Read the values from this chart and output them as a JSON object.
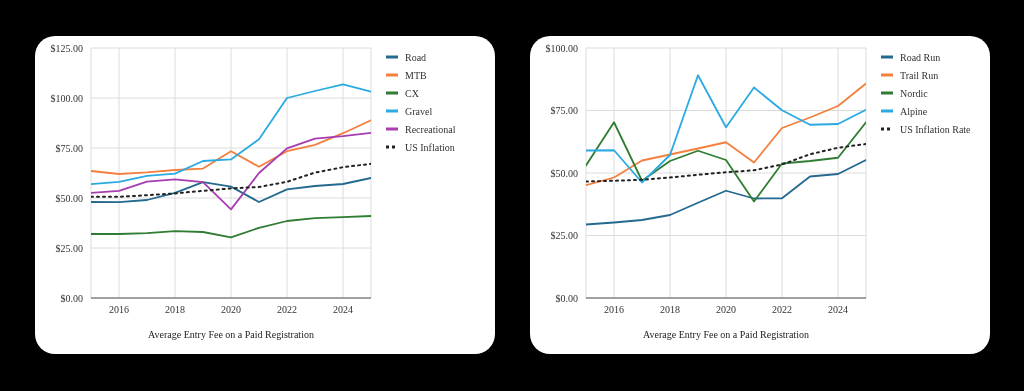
{
  "chart_data": [
    {
      "type": "line",
      "xlabel": "Average Entry Fee on a Paid Registration",
      "x": [
        2015,
        2016,
        2017,
        2018,
        2019,
        2020,
        2021,
        2022,
        2023,
        2024,
        2025
      ],
      "xlim": [
        2015,
        2025
      ],
      "xticks": [
        2016,
        2018,
        2020,
        2022,
        2024
      ],
      "ylim": [
        0,
        125
      ],
      "yticks": [
        {
          "value": 0,
          "label": "$0.00"
        },
        {
          "value": 25,
          "label": "$25.00"
        },
        {
          "value": 50,
          "label": "$50.00"
        },
        {
          "value": 75,
          "label": "$75.00"
        },
        {
          "value": 100,
          "label": "$100.00"
        },
        {
          "value": 125,
          "label": "$125.00"
        }
      ],
      "grid": true,
      "legend": "right",
      "marker": "none",
      "series": [
        {
          "name": "Road",
          "color": "#24698f",
          "values": [
            48.0,
            47.9,
            49.0,
            52.6,
            57.9,
            55.7,
            48.0,
            54.3,
            56.0,
            57.0,
            60.0
          ]
        },
        {
          "name": "MTB",
          "color": "#f47f3e",
          "values": [
            63.5,
            62.0,
            62.8,
            64.0,
            64.7,
            73.4,
            65.6,
            73.4,
            76.6,
            82.4,
            88.9
          ]
        },
        {
          "name": "CX",
          "color": "#2f7d32",
          "values": [
            32.0,
            32.0,
            32.4,
            33.4,
            33.0,
            30.3,
            35.1,
            38.5,
            39.9,
            40.4,
            41.0
          ]
        },
        {
          "name": "Gravel",
          "color": "#2aaae2",
          "values": [
            56.9,
            58.1,
            61.1,
            62.2,
            68.5,
            69.3,
            79.4,
            100.0,
            103.5,
            106.8,
            103.2
          ]
        },
        {
          "name": "Recreational",
          "color": "#a63db1",
          "values": [
            52.6,
            53.6,
            58.2,
            59.3,
            57.9,
            44.3,
            62.5,
            74.8,
            79.7,
            80.9,
            82.6
          ]
        },
        {
          "name": "US Inflation",
          "color": "#222222",
          "line_style": "dotted",
          "values": [
            50.6,
            50.6,
            51.4,
            52.3,
            53.6,
            54.8,
            55.5,
            58.1,
            62.7,
            65.4,
            67.1
          ]
        }
      ]
    },
    {
      "type": "line",
      "xlabel": "Average Entry Fee on a Paid Registration",
      "x": [
        2015,
        2016,
        2017,
        2018,
        2019,
        2020,
        2021,
        2022,
        2023,
        2024,
        2025
      ],
      "xlim": [
        2015,
        2025
      ],
      "xticks": [
        2016,
        2018,
        2020,
        2022,
        2024
      ],
      "ylim": [
        0,
        100
      ],
      "yticks": [
        {
          "value": 0,
          "label": "$0.00"
        },
        {
          "value": 25,
          "label": "$25.00"
        },
        {
          "value": 50,
          "label": "$50.00"
        },
        {
          "value": 75,
          "label": "$75.00"
        },
        {
          "value": 100,
          "label": "$100.00"
        }
      ],
      "grid": true,
      "legend": "right",
      "marker": "none",
      "series": [
        {
          "name": "Road Run",
          "color": "#24698f",
          "values": [
            29.4,
            30.2,
            31.2,
            33.2,
            38.1,
            42.9,
            39.8,
            39.9,
            48.6,
            49.6,
            55.2
          ]
        },
        {
          "name": "Trail Run",
          "color": "#f47f3e",
          "values": [
            45.1,
            48.2,
            55.0,
            57.4,
            59.8,
            62.3,
            54.2,
            68.0,
            72.2,
            76.8,
            85.8
          ]
        },
        {
          "name": "Nordic",
          "color": "#2f7d32",
          "values": [
            53.0,
            70.3,
            46.9,
            54.8,
            58.9,
            55.2,
            38.6,
            53.8,
            54.8,
            56.1,
            70.3
          ]
        },
        {
          "name": "Alpine",
          "color": "#2aaae2",
          "values": [
            59.0,
            59.1,
            46.2,
            57.2,
            89.1,
            68.3,
            84.2,
            75.1,
            69.3,
            69.6,
            75.3
          ]
        },
        {
          "name": "US Inflation Rate",
          "color": "#222222",
          "line_style": "dotted",
          "values": [
            46.6,
            46.9,
            47.3,
            48.2,
            49.3,
            50.3,
            51.1,
            53.4,
            57.5,
            60.1,
            61.6
          ]
        }
      ]
    }
  ]
}
